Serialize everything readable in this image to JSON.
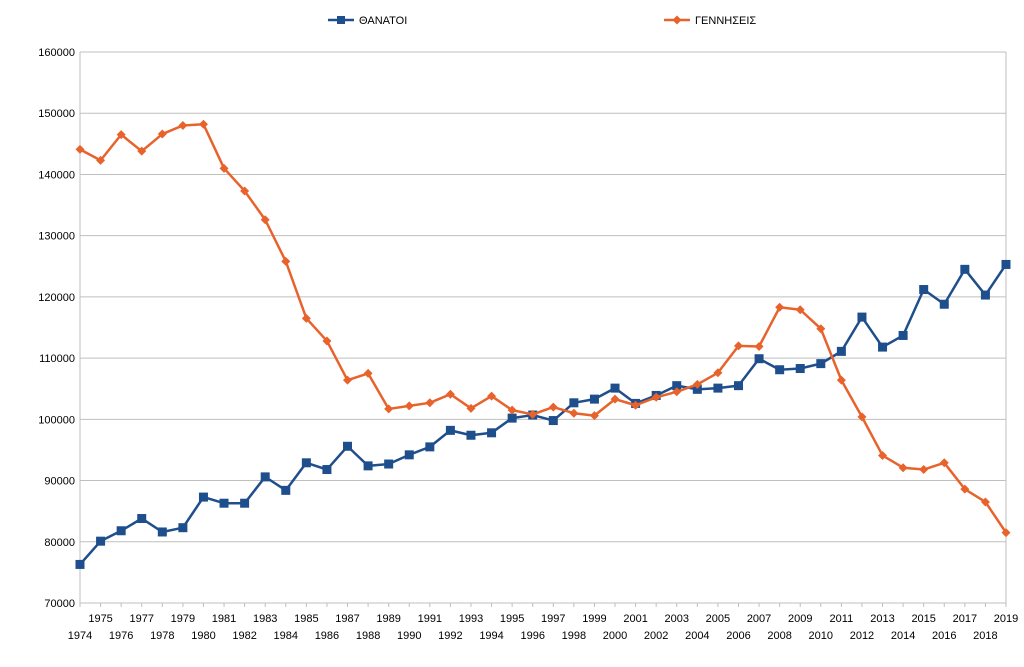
{
  "chart_data": {
    "type": "line",
    "title": "",
    "xlabel": "",
    "ylabel": "",
    "ylim": [
      70000,
      160000
    ],
    "yticks": [
      "70000",
      "80000",
      "90000",
      "100000",
      "110000",
      "120000",
      "130000",
      "140000",
      "150000",
      "160000"
    ],
    "x": [
      "1974",
      "1975",
      "1976",
      "1977",
      "1978",
      "1979",
      "1980",
      "1981",
      "1982",
      "1983",
      "1984",
      "1985",
      "1986",
      "1987",
      "1988",
      "1989",
      "1990",
      "1991",
      "1992",
      "1993",
      "1994",
      "1995",
      "1996",
      "1997",
      "1998",
      "1999",
      "2000",
      "2001",
      "2002",
      "2003",
      "2004",
      "2005",
      "2006",
      "2007",
      "2008",
      "2009",
      "2010",
      "2011",
      "2012",
      "2013",
      "2014",
      "2015",
      "2016",
      "2017",
      "2018",
      "2019"
    ],
    "legend_position": "top",
    "series": [
      {
        "name": "ΘΑΝΑΤΟΙ",
        "color": "#1f4e8c",
        "marker": "square",
        "values": [
          76300,
          80100,
          81800,
          83800,
          81600,
          82300,
          87300,
          86300,
          86300,
          90600,
          88400,
          92900,
          91800,
          95600,
          92400,
          92700,
          94200,
          95500,
          98200,
          97400,
          97800,
          100200,
          100700,
          99800,
          102700,
          103300,
          105100,
          102600,
          103900,
          105500,
          104900,
          105100,
          105500,
          109900,
          108100,
          108300,
          109100,
          111100,
          116700,
          111800,
          113700,
          121200,
          118800,
          124500,
          120300,
          125300
        ]
      },
      {
        "name": "ΓΕΝΝΗΣΕΙΣ",
        "color": "#e8632c",
        "marker": "diamond",
        "values": [
          144100,
          142300,
          146500,
          143800,
          146600,
          148000,
          148200,
          141000,
          137300,
          132600,
          125800,
          116500,
          112800,
          106400,
          107500,
          101700,
          102200,
          102700,
          104100,
          101800,
          103800,
          101500,
          100800,
          102000,
          101000,
          100600,
          103300,
          102300,
          103600,
          104500,
          105700,
          107600,
          112000,
          111900,
          118300,
          117900,
          114800,
          106400,
          100400,
          94100,
          92100,
          91800,
          92900,
          88600,
          86500,
          81500
        ]
      }
    ]
  }
}
